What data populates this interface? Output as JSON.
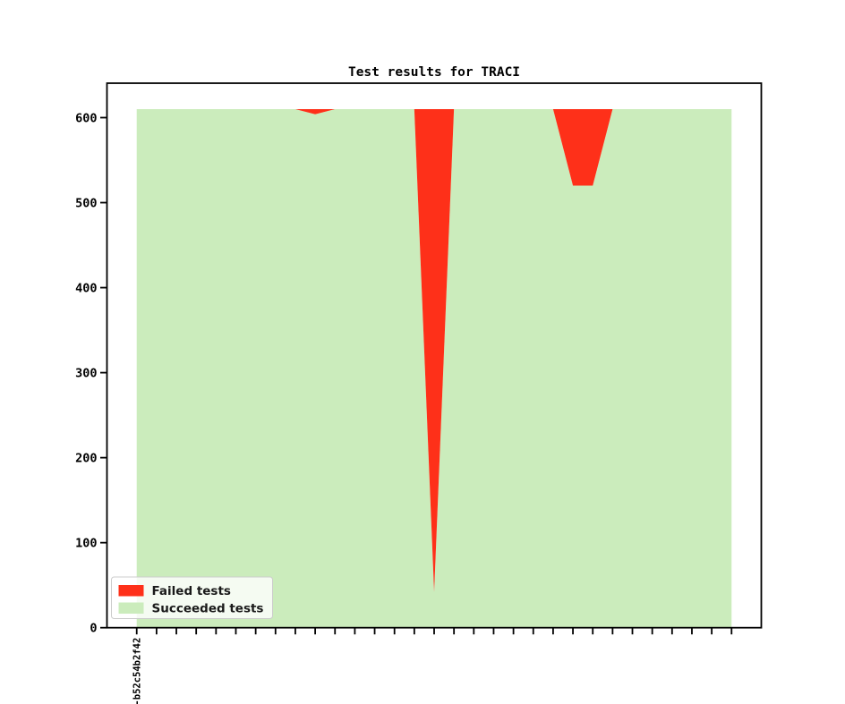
{
  "figure": {
    "background": "#ffffff",
    "border_color": "#000000"
  },
  "chart_data": {
    "type": "area",
    "stacked": true,
    "title": "Test results for TRACI",
    "xlabel": "",
    "ylabel": "",
    "x": [
      0,
      1,
      2,
      3,
      4,
      5,
      6,
      7,
      8,
      9,
      10,
      11,
      12,
      13,
      14,
      15,
      16,
      17,
      18,
      19,
      20,
      21,
      22,
      23,
      24,
      25,
      26,
      27,
      28,
      29,
      30
    ],
    "x_tick_labels": [
      "-b52c54b2f42",
      "",
      "",
      "",
      "",
      "",
      "",
      "",
      "",
      "",
      "",
      "",
      "",
      "",
      "",
      "",
      "",
      "",
      "",
      "",
      "",
      "",
      "",
      "",
      "",
      "",
      "",
      "",
      "",
      "",
      ""
    ],
    "series": [
      {
        "name": "Succeeded tests",
        "color": "#cbecbc",
        "stack_position": "bottom",
        "values": [
          610,
          610,
          610,
          610,
          610,
          610,
          610,
          610,
          610,
          604,
          610,
          610,
          610,
          610,
          610,
          42,
          610,
          610,
          610,
          610,
          610,
          610,
          520,
          520,
          610,
          610,
          610,
          610,
          610,
          610,
          610
        ]
      },
      {
        "name": "Failed tests",
        "color": "#fe3019",
        "stack_position": "top",
        "values": [
          0,
          0,
          0,
          0,
          0,
          0,
          0,
          0,
          0,
          6,
          0,
          0,
          0,
          0,
          0,
          568,
          0,
          0,
          0,
          0,
          0,
          0,
          90,
          90,
          0,
          0,
          0,
          0,
          0,
          0,
          0
        ]
      }
    ],
    "total_tests": 610,
    "xlim": [
      -1.5,
      31.5
    ],
    "ylim": [
      0,
      640.5
    ],
    "yticks": [
      0,
      100,
      200,
      300,
      400,
      500,
      600
    ],
    "grid": false,
    "legend": {
      "position": "lower left",
      "entries": [
        "Failed tests",
        "Succeeded tests"
      ],
      "background": "#ffffff",
      "background_opacity": 0.8,
      "border_color": "#cccccc"
    }
  }
}
